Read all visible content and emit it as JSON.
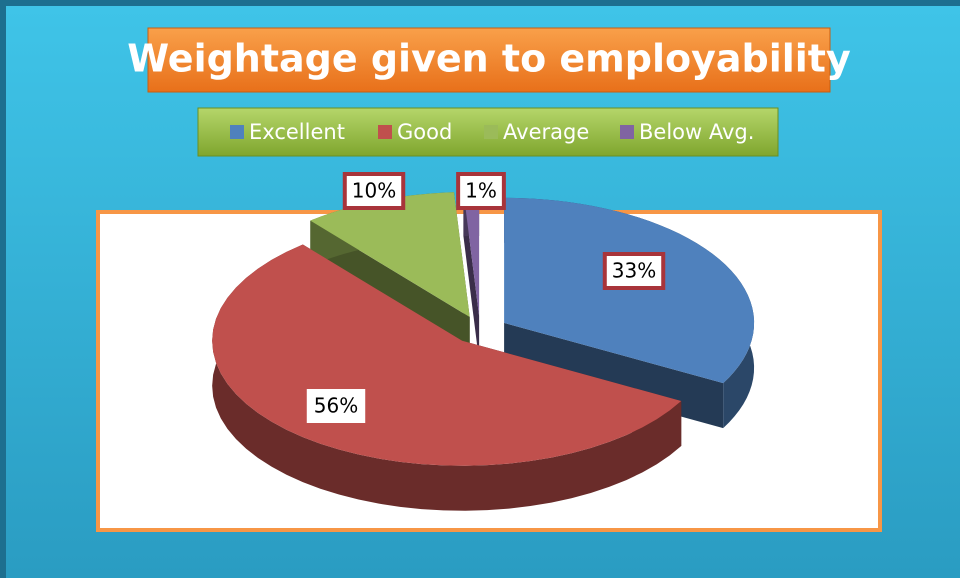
{
  "chart_data": {
    "type": "pie",
    "title": "Weightage given to employability",
    "categories": [
      "Excellent",
      "Good",
      "Average",
      "Below Avg."
    ],
    "values": [
      33,
      56,
      10,
      1
    ],
    "value_labels": [
      "33%",
      "56%",
      "10%",
      "1%"
    ],
    "colors": [
      "#4f81bd",
      "#c0504d",
      "#9bbb59",
      "#8064a2"
    ],
    "legend": "top"
  }
}
